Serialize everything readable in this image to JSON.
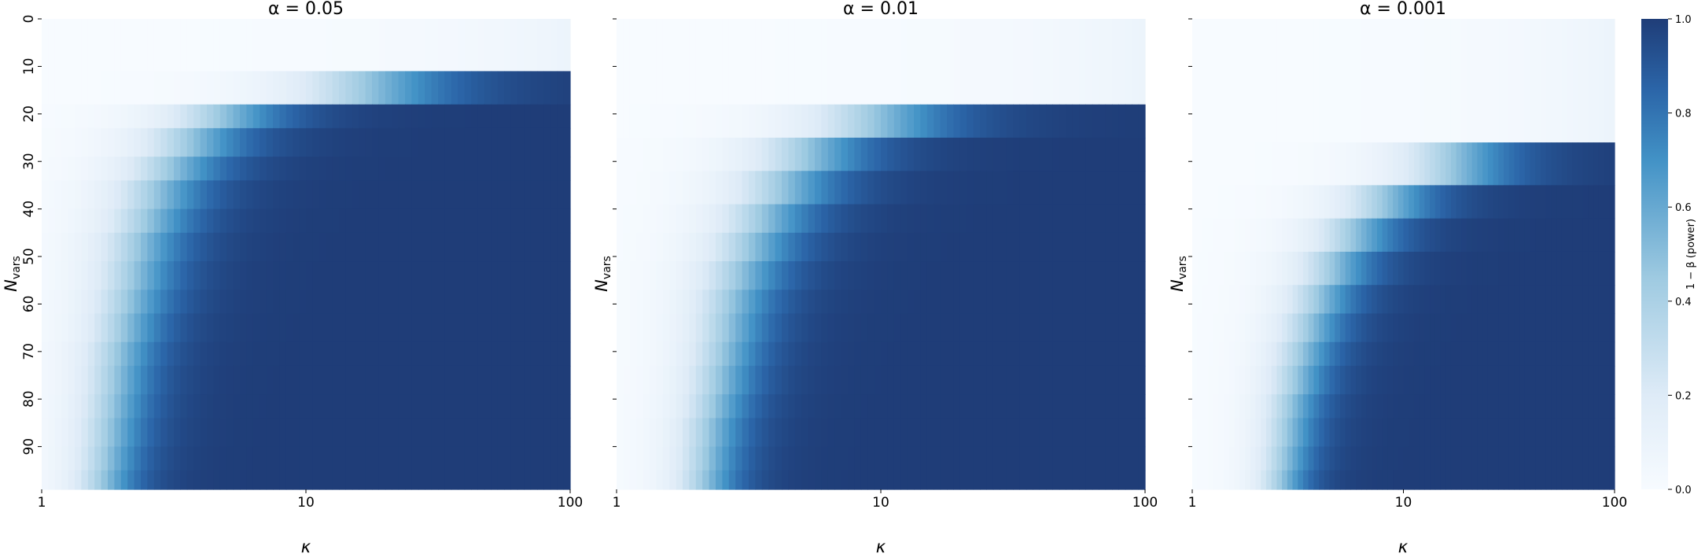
{
  "colors": {
    "low": "#f7fbff",
    "mid1": "#deebf7",
    "mid2": "#9ecae1",
    "mid3": "#4292c6",
    "mid4": "#2b65a8",
    "high": "#1f3d78"
  },
  "chart_data": [
    {
      "type": "heatmap",
      "title": "α = 0.05",
      "alpha": 0.05,
      "xlabel": "κ",
      "ylabel": "N",
      "ylabel_sub": "vars",
      "x_scale": "log",
      "xlim": [
        1,
        100
      ],
      "xticks": [
        "1",
        "10",
        "100"
      ],
      "yticks": [
        "0",
        "10",
        "20",
        "30",
        "40",
        "50",
        "60",
        "70",
        "80",
        "90"
      ],
      "ytick_labels_shown": true,
      "ylim": [
        0,
        99
      ],
      "value_range": [
        0,
        1
      ],
      "rows": [
        {
          "n_start": 0,
          "n_end": 11,
          "k_half": 1000,
          "steep": 1.0
        },
        {
          "n_start": 11,
          "n_end": 18,
          "k_half": 18,
          "steep": 2.3
        },
        {
          "n_start": 18,
          "n_end": 23,
          "k_half": 5.0,
          "steep": 3.0
        },
        {
          "n_start": 23,
          "n_end": 29,
          "k_half": 3.8,
          "steep": 3.3
        },
        {
          "n_start": 29,
          "n_end": 34,
          "k_half": 3.2,
          "steep": 3.5
        },
        {
          "n_start": 34,
          "n_end": 40,
          "k_half": 2.8,
          "steep": 3.7
        },
        {
          "n_start": 40,
          "n_end": 45,
          "k_half": 2.6,
          "steep": 3.9
        },
        {
          "n_start": 45,
          "n_end": 51,
          "k_half": 2.4,
          "steep": 4.0
        },
        {
          "n_start": 51,
          "n_end": 57,
          "k_half": 2.3,
          "steep": 4.2
        },
        {
          "n_start": 57,
          "n_end": 62,
          "k_half": 2.2,
          "steep": 4.3
        },
        {
          "n_start": 62,
          "n_end": 68,
          "k_half": 2.1,
          "steep": 4.5
        },
        {
          "n_start": 68,
          "n_end": 73,
          "k_half": 2.0,
          "steep": 4.6
        },
        {
          "n_start": 73,
          "n_end": 79,
          "k_half": 1.95,
          "steep": 4.8
        },
        {
          "n_start": 79,
          "n_end": 84,
          "k_half": 1.9,
          "steep": 4.9
        },
        {
          "n_start": 84,
          "n_end": 90,
          "k_half": 1.85,
          "steep": 5.0
        },
        {
          "n_start": 90,
          "n_end": 95,
          "k_half": 1.8,
          "steep": 5.2
        },
        {
          "n_start": 95,
          "n_end": 99,
          "k_half": 1.75,
          "steep": 5.3
        }
      ]
    },
    {
      "type": "heatmap",
      "title": "α = 0.01",
      "alpha": 0.01,
      "xlabel": "κ",
      "ylabel": "N",
      "ylabel_sub": "vars",
      "x_scale": "log",
      "xlim": [
        1,
        100
      ],
      "xticks": [
        "1",
        "10",
        "100"
      ],
      "yticks": [
        "",
        "",
        "",
        "",
        "",
        "",
        "",
        "",
        "",
        ""
      ],
      "ytick_labels_shown": false,
      "ylim": [
        0,
        99
      ],
      "value_range": [
        0,
        1
      ],
      "rows": [
        {
          "n_start": 0,
          "n_end": 18,
          "k_half": 1000,
          "steep": 1.0
        },
        {
          "n_start": 18,
          "n_end": 25,
          "k_half": 10,
          "steep": 2.5
        },
        {
          "n_start": 25,
          "n_end": 32,
          "k_half": 5.5,
          "steep": 3.0
        },
        {
          "n_start": 32,
          "n_end": 39,
          "k_half": 4.4,
          "steep": 3.3
        },
        {
          "n_start": 39,
          "n_end": 45,
          "k_half": 3.7,
          "steep": 3.6
        },
        {
          "n_start": 45,
          "n_end": 51,
          "k_half": 3.3,
          "steep": 3.8
        },
        {
          "n_start": 51,
          "n_end": 57,
          "k_half": 3.0,
          "steep": 4.0
        },
        {
          "n_start": 57,
          "n_end": 62,
          "k_half": 2.8,
          "steep": 4.2
        },
        {
          "n_start": 62,
          "n_end": 68,
          "k_half": 2.7,
          "steep": 4.4
        },
        {
          "n_start": 68,
          "n_end": 73,
          "k_half": 2.6,
          "steep": 4.6
        },
        {
          "n_start": 73,
          "n_end": 79,
          "k_half": 2.5,
          "steep": 4.7
        },
        {
          "n_start": 79,
          "n_end": 84,
          "k_half": 2.4,
          "steep": 4.9
        },
        {
          "n_start": 84,
          "n_end": 90,
          "k_half": 2.3,
          "steep": 5.0
        },
        {
          "n_start": 90,
          "n_end": 95,
          "k_half": 2.25,
          "steep": 5.2
        },
        {
          "n_start": 95,
          "n_end": 99,
          "k_half": 2.2,
          "steep": 5.3
        }
      ]
    },
    {
      "type": "heatmap",
      "title": "α = 0.001",
      "alpha": 0.001,
      "xlabel": "κ",
      "ylabel": "N",
      "ylabel_sub": "vars",
      "x_scale": "log",
      "xlim": [
        1,
        100
      ],
      "xticks": [
        "1",
        "10",
        "100"
      ],
      "yticks": [
        "",
        "",
        "",
        "",
        "",
        "",
        "",
        "",
        "",
        ""
      ],
      "ytick_labels_shown": false,
      "ylim": [
        0,
        99
      ],
      "value_range": [
        0,
        1
      ],
      "rows": [
        {
          "n_start": 0,
          "n_end": 26,
          "k_half": 1000,
          "steep": 1.0
        },
        {
          "n_start": 26,
          "n_end": 35,
          "k_half": 18,
          "steep": 2.5
        },
        {
          "n_start": 35,
          "n_end": 42,
          "k_half": 8.5,
          "steep": 3.0
        },
        {
          "n_start": 42,
          "n_end": 49,
          "k_half": 6.0,
          "steep": 3.3
        },
        {
          "n_start": 49,
          "n_end": 56,
          "k_half": 4.8,
          "steep": 3.6
        },
        {
          "n_start": 56,
          "n_end": 62,
          "k_half": 4.1,
          "steep": 3.9
        },
        {
          "n_start": 62,
          "n_end": 68,
          "k_half": 3.7,
          "steep": 4.1
        },
        {
          "n_start": 68,
          "n_end": 73,
          "k_half": 3.4,
          "steep": 4.3
        },
        {
          "n_start": 73,
          "n_end": 79,
          "k_half": 3.2,
          "steep": 4.5
        },
        {
          "n_start": 79,
          "n_end": 84,
          "k_half": 3.0,
          "steep": 4.7
        },
        {
          "n_start": 84,
          "n_end": 90,
          "k_half": 2.9,
          "steep": 4.9
        },
        {
          "n_start": 90,
          "n_end": 95,
          "k_half": 2.8,
          "steep": 5.1
        },
        {
          "n_start": 95,
          "n_end": 99,
          "k_half": 2.7,
          "steep": 5.3
        }
      ]
    }
  ],
  "colorbar": {
    "label": "1 − β (power)",
    "ticks": [
      "0.0",
      "0.2",
      "0.4",
      "0.6",
      "0.8",
      "1.0"
    ],
    "range": [
      0,
      1
    ]
  }
}
